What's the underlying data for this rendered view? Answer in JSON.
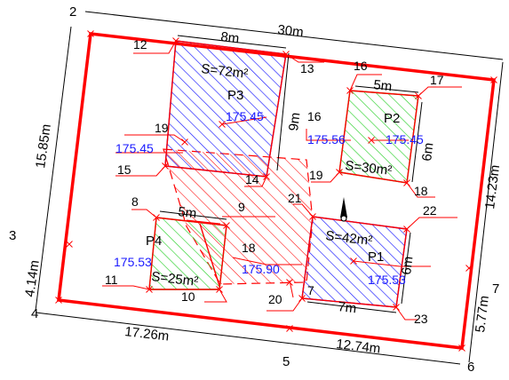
{
  "colors": {
    "boundary": "#ff0000",
    "blue_hatch": "#1a1aff",
    "green_hatch": "#2fd12f",
    "red_hatch": "#ff0000",
    "text": "#000000",
    "elevation": "#1a1aff"
  },
  "corner_labels": {
    "c2": "2",
    "c3": "3",
    "c4": "4",
    "c5": "5",
    "c6": "6",
    "c7": "7"
  },
  "dimensions": {
    "top": "30m",
    "left": "15.85m",
    "left_lower": "4.14m",
    "bottom_left": "17.26m",
    "bottom_right": "12.74m",
    "right": "14.23m",
    "right_lower": "5.77m"
  },
  "point_labels": {
    "p8": "8",
    "p9": "9",
    "p10": "10",
    "p11": "11",
    "p12": "12",
    "p13": "13",
    "p14": "14",
    "p15": "15",
    "p16a": "16",
    "p16b": "16",
    "p17": "17",
    "p18a": "18",
    "p18b": "18",
    "p19a": "19",
    "p19b": "19",
    "p20": "20",
    "p21": "21",
    "p22": "22",
    "p23": "23",
    "p7": "7"
  },
  "plots": {
    "P1": {
      "name": "P1",
      "area": "S=42m²",
      "width": "7m",
      "depth": "6m",
      "elevation": "175.53"
    },
    "P2": {
      "name": "P2",
      "area": "S=30m²",
      "width": "5m",
      "depth": "6m",
      "elevation": "175.45"
    },
    "P3": {
      "name": "P3",
      "area": "S=72m²",
      "width": "8m",
      "depth": "9m",
      "elevation": "175.45"
    },
    "P4": {
      "name": "P4",
      "area": "S=25m²",
      "width": "5m",
      "elevation": "175.53"
    }
  },
  "elevations": {
    "left": "175.45",
    "mid": "175.56",
    "center": "175.90"
  }
}
